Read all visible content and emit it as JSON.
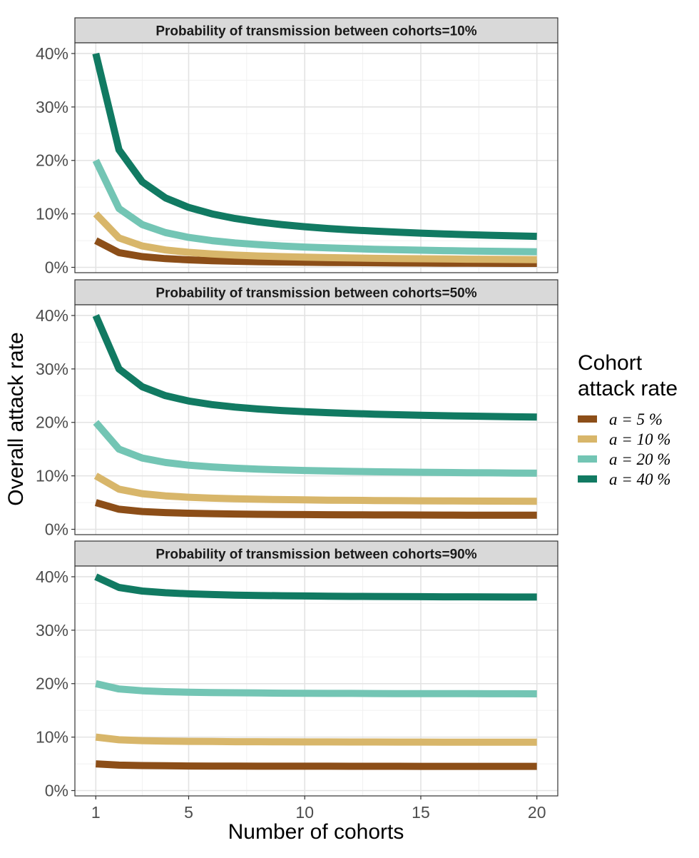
{
  "chart_data": {
    "type": "line",
    "xlabel": "Number of cohorts",
    "ylabel": "Overall attack rate",
    "x": [
      1,
      2,
      3,
      4,
      5,
      6,
      7,
      8,
      9,
      10,
      11,
      12,
      13,
      14,
      15,
      16,
      17,
      18,
      19,
      20
    ],
    "xticks": [
      1,
      5,
      10,
      15,
      20
    ],
    "xlim": [
      0.1,
      20.9
    ],
    "yticks": [
      0,
      10,
      20,
      30,
      40
    ],
    "ytick_labels": [
      "0%",
      "10%",
      "20%",
      "30%",
      "40%"
    ],
    "ylim": [
      -1,
      42
    ],
    "grid": true,
    "legend": {
      "title": [
        "Cohort",
        "attack rate"
      ],
      "position": "right",
      "entries": [
        "a = 5 %",
        "a = 10 %",
        "a = 20 %",
        "a = 40 %"
      ]
    },
    "colors": [
      "#8C4E18",
      "#D8B66A",
      "#73C5B4",
      "#117A62"
    ],
    "panels": [
      {
        "title": "Probability of transmission between cohorts=10%",
        "series": [
          {
            "name": "a = 5 %",
            "values": [
              5.0,
              2.75,
              2.0,
              1.63,
              1.4,
              1.25,
              1.14,
              1.06,
              1.0,
              0.95,
              0.91,
              0.88,
              0.85,
              0.82,
              0.8,
              0.78,
              0.76,
              0.75,
              0.74,
              0.73
            ]
          },
          {
            "name": "a = 10 %",
            "values": [
              10.0,
              5.5,
              4.0,
              3.25,
              2.8,
              2.5,
              2.29,
              2.13,
              2.0,
              1.9,
              1.82,
              1.75,
              1.69,
              1.64,
              1.6,
              1.56,
              1.53,
              1.5,
              1.47,
              1.45
            ]
          },
          {
            "name": "a = 20 %",
            "values": [
              20.0,
              11.0,
              8.0,
              6.5,
              5.6,
              5.0,
              4.57,
              4.25,
              4.0,
              3.8,
              3.64,
              3.5,
              3.38,
              3.29,
              3.2,
              3.13,
              3.06,
              3.0,
              2.95,
              2.9
            ]
          },
          {
            "name": "a = 40 %",
            "values": [
              40.0,
              22.0,
              16.0,
              13.0,
              11.2,
              10.0,
              9.14,
              8.5,
              8.0,
              7.6,
              7.27,
              7.0,
              6.77,
              6.57,
              6.4,
              6.25,
              6.12,
              6.0,
              5.89,
              5.8
            ]
          }
        ]
      },
      {
        "title": "Probability of transmission between cohorts=50%",
        "series": [
          {
            "name": "a = 5 %",
            "values": [
              5.0,
              3.75,
              3.33,
              3.13,
              3.0,
              2.92,
              2.86,
              2.81,
              2.78,
              2.75,
              2.73,
              2.71,
              2.69,
              2.68,
              2.67,
              2.66,
              2.65,
              2.64,
              2.63,
              2.63
            ]
          },
          {
            "name": "a = 10 %",
            "values": [
              10.0,
              7.5,
              6.67,
              6.25,
              6.0,
              5.83,
              5.71,
              5.63,
              5.56,
              5.5,
              5.45,
              5.42,
              5.38,
              5.36,
              5.33,
              5.31,
              5.29,
              5.28,
              5.26,
              5.25
            ]
          },
          {
            "name": "a = 20 %",
            "values": [
              20.0,
              15.0,
              13.33,
              12.5,
              12.0,
              11.67,
              11.43,
              11.25,
              11.11,
              11.0,
              10.91,
              10.83,
              10.77,
              10.71,
              10.67,
              10.63,
              10.59,
              10.56,
              10.53,
              10.5
            ]
          },
          {
            "name": "a = 40 %",
            "values": [
              40.0,
              30.0,
              26.67,
              25.0,
              24.0,
              23.33,
              22.86,
              22.5,
              22.22,
              22.0,
              21.82,
              21.67,
              21.54,
              21.43,
              21.33,
              21.25,
              21.18,
              21.11,
              21.05,
              21.0
            ]
          }
        ]
      },
      {
        "title": "Probability of transmission between cohorts=90%",
        "series": [
          {
            "name": "a = 5 %",
            "values": [
              5.0,
              4.75,
              4.67,
              4.63,
              4.6,
              4.58,
              4.57,
              4.56,
              4.56,
              4.55,
              4.55,
              4.54,
              4.54,
              4.54,
              4.53,
              4.53,
              4.53,
              4.53,
              4.53,
              4.53
            ]
          },
          {
            "name": "a = 10 %",
            "values": [
              10.0,
              9.5,
              9.33,
              9.25,
              9.2,
              9.17,
              9.14,
              9.13,
              9.11,
              9.1,
              9.09,
              9.08,
              9.08,
              9.07,
              9.07,
              9.06,
              9.06,
              9.06,
              9.05,
              9.05
            ]
          },
          {
            "name": "a = 20 %",
            "values": [
              20.0,
              19.0,
              18.67,
              18.5,
              18.4,
              18.33,
              18.29,
              18.25,
              18.22,
              18.2,
              18.18,
              18.17,
              18.15,
              18.14,
              18.13,
              18.13,
              18.12,
              18.11,
              18.11,
              18.1
            ]
          },
          {
            "name": "a = 40 %",
            "values": [
              40.0,
              38.0,
              37.33,
              37.0,
              36.8,
              36.67,
              36.57,
              36.5,
              36.44,
              36.4,
              36.36,
              36.33,
              36.31,
              36.29,
              36.27,
              36.25,
              36.24,
              36.22,
              36.21,
              36.2
            ]
          }
        ]
      }
    ]
  }
}
